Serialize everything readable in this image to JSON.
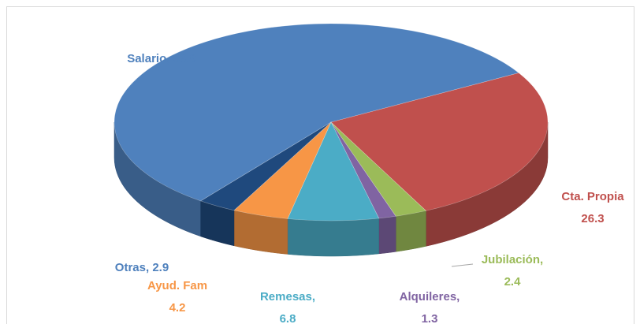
{
  "chart_data": {
    "type": "pie",
    "categories": [
      "Salario",
      "Cta. Propia",
      "Jubilación",
      "Alquileres",
      "Remesas",
      "Ayud. Fam",
      "Otras"
    ],
    "values": [
      56.8,
      26.3,
      2.4,
      1.3,
      6.8,
      4.2,
      2.9
    ],
    "colors": [
      "#4f81bd",
      "#c0504d",
      "#9bbb59",
      "#8064a2",
      "#4bacc6",
      "#f79646",
      "#1f497d"
    ]
  }
}
